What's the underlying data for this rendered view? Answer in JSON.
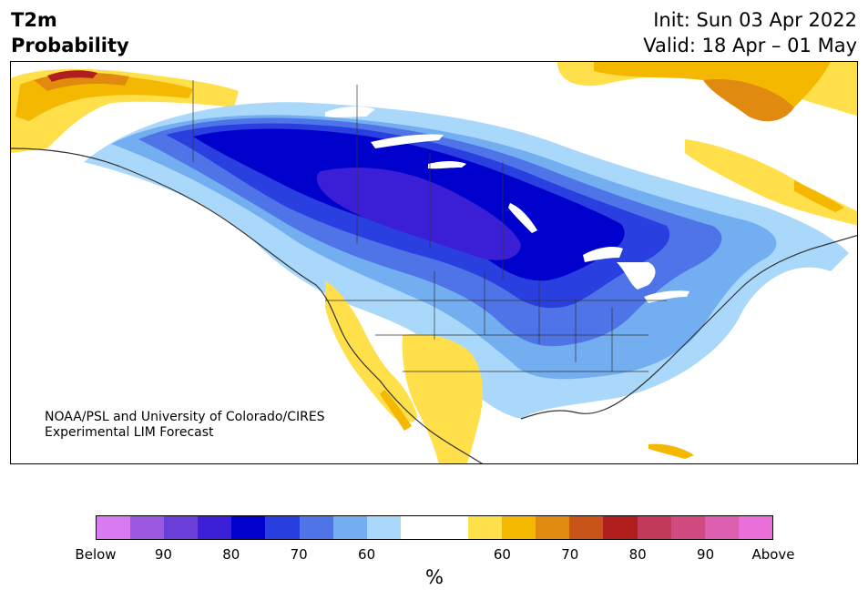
{
  "header": {
    "title_line1": "T2m",
    "title_line2": "Probability",
    "init_line": "Init: Sun 03 Apr 2022",
    "valid_line": "Valid: 18 Apr – 01 May"
  },
  "credit": {
    "line1": "NOAA/PSL and University of Colorado/CIRES",
    "line2": "Experimental LIM Forecast"
  },
  "map": {
    "region": "North America",
    "variable": "2 m temperature probability",
    "colors": {
      "below_90": "#9a58e0",
      "below_80": "#3a1fd6",
      "below_70_dark": "#0000cc",
      "below_70": "#2a3fe0",
      "below_60": "#4f74e8",
      "below_50": "#72aef0",
      "below_40": "#aad8fb",
      "normal": "#ffffff",
      "above_40": "#ffdf4a",
      "above_50": "#f5b800",
      "above_60": "#e08a10",
      "above_70": "#c85418",
      "above_80": "#b01e1e"
    }
  },
  "colorbar": {
    "colors": [
      "#d87af0",
      "#9a58e0",
      "#6a3ed8",
      "#3a1fd6",
      "#0000cc",
      "#2a3fe0",
      "#4f74e8",
      "#72aef0",
      "#aad8fb",
      "#ffffff",
      "#ffffff",
      "#ffdf4a",
      "#f5b800",
      "#e08a10",
      "#c85418",
      "#b01e1e",
      "#c23a5a",
      "#d04a80",
      "#dd60b0",
      "#e870d8"
    ],
    "tick_labels": [
      "Below",
      "90",
      "80",
      "70",
      "60",
      "60",
      "70",
      "80",
      "90",
      "Above"
    ],
    "units": "%"
  }
}
